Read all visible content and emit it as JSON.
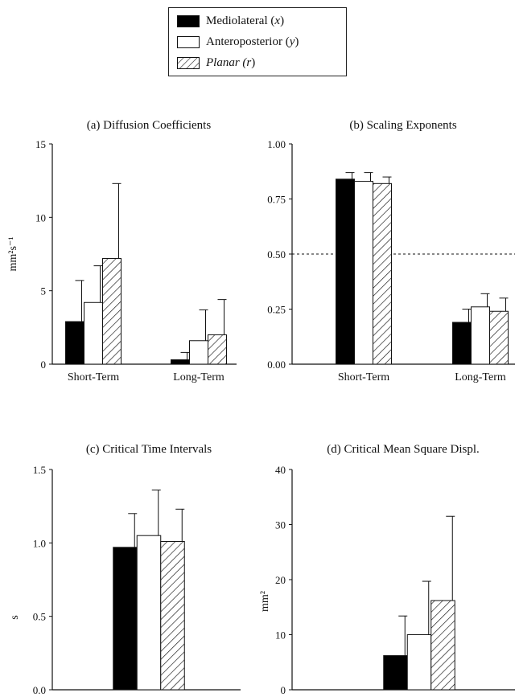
{
  "legend": {
    "items": [
      {
        "label": "Mediolateral (",
        "var": "x",
        "close": ")",
        "pattern": "solid"
      },
      {
        "label": "Anteroposterior (",
        "var": "y",
        "close": ")",
        "pattern": "empty"
      },
      {
        "label": "Planar (",
        "var": "r",
        "close": ")",
        "pattern": "hatch",
        "italic_label": true
      }
    ]
  },
  "colors": {
    "solid": "#000000",
    "empty": "#ffffff",
    "hatch_line": "#111111",
    "axis": "#111111"
  },
  "chart_data": [
    {
      "id": "a",
      "type": "bar",
      "title": "(a)  Diffusion Coefficients",
      "ylabel": "mm²s⁻¹",
      "ylim": [
        0,
        15
      ],
      "yticks": [
        0,
        5,
        10,
        15
      ],
      "ytick_labels": [
        "0",
        "5",
        "10",
        "15"
      ],
      "categories": [
        "Short-Term",
        "Long-Term"
      ],
      "series": [
        {
          "name": "Mediolateral (x)",
          "values": [
            2.9,
            0.3
          ],
          "errors": [
            2.8,
            0.5
          ]
        },
        {
          "name": "Anteroposterior (y)",
          "values": [
            4.2,
            1.6
          ],
          "errors": [
            2.5,
            2.1
          ]
        },
        {
          "name": "Planar (r)",
          "values": [
            7.2,
            2.0
          ],
          "errors": [
            5.1,
            2.4
          ]
        }
      ],
      "reference_line": null
    },
    {
      "id": "b",
      "type": "bar",
      "title": "(b)  Scaling Exponents",
      "ylabel": "",
      "ylim": [
        0,
        1
      ],
      "yticks": [
        0,
        0.25,
        0.5,
        0.75,
        1
      ],
      "ytick_labels": [
        "0.00",
        "0.25",
        "0.50",
        "0.75",
        "1.00"
      ],
      "categories": [
        "Short-Term",
        "Long-Term"
      ],
      "series": [
        {
          "name": "Mediolateral (x)",
          "values": [
            0.84,
            0.19
          ],
          "errors": [
            0.03,
            0.06
          ]
        },
        {
          "name": "Anteroposterior (y)",
          "values": [
            0.83,
            0.26
          ],
          "errors": [
            0.04,
            0.06
          ]
        },
        {
          "name": "Planar (r)",
          "values": [
            0.82,
            0.24
          ],
          "errors": [
            0.03,
            0.06
          ]
        }
      ],
      "reference_line": 0.5
    },
    {
      "id": "c",
      "type": "bar",
      "title": "(c)  Critical Time Intervals",
      "ylabel": "s",
      "ylim": [
        0,
        1.5
      ],
      "yticks": [
        0,
        0.5,
        1,
        1.5
      ],
      "ytick_labels": [
        "0.0",
        "0.5",
        "1.0",
        "1.5"
      ],
      "categories": [
        ""
      ],
      "series": [
        {
          "name": "Mediolateral (x)",
          "values": [
            0.97
          ],
          "errors": [
            0.23
          ]
        },
        {
          "name": "Anteroposterior (y)",
          "values": [
            1.05
          ],
          "errors": [
            0.31
          ]
        },
        {
          "name": "Planar (r)",
          "values": [
            1.01
          ],
          "errors": [
            0.22
          ]
        }
      ],
      "reference_line": null
    },
    {
      "id": "d",
      "type": "bar",
      "title": "(d)  Critical Mean Square Displ.",
      "ylabel": "mm²",
      "ylim": [
        0,
        40
      ],
      "yticks": [
        0,
        10,
        20,
        30,
        40
      ],
      "ytick_labels": [
        "0",
        "10",
        "20",
        "30",
        "40"
      ],
      "categories": [
        ""
      ],
      "series": [
        {
          "name": "Mediolateral (x)",
          "values": [
            6.2
          ],
          "errors": [
            7.2
          ]
        },
        {
          "name": "Anteroposterior (y)",
          "values": [
            10.0
          ],
          "errors": [
            9.7
          ]
        },
        {
          "name": "Planar (r)",
          "values": [
            16.2
          ],
          "errors": [
            15.3
          ]
        }
      ],
      "reference_line": null
    }
  ]
}
